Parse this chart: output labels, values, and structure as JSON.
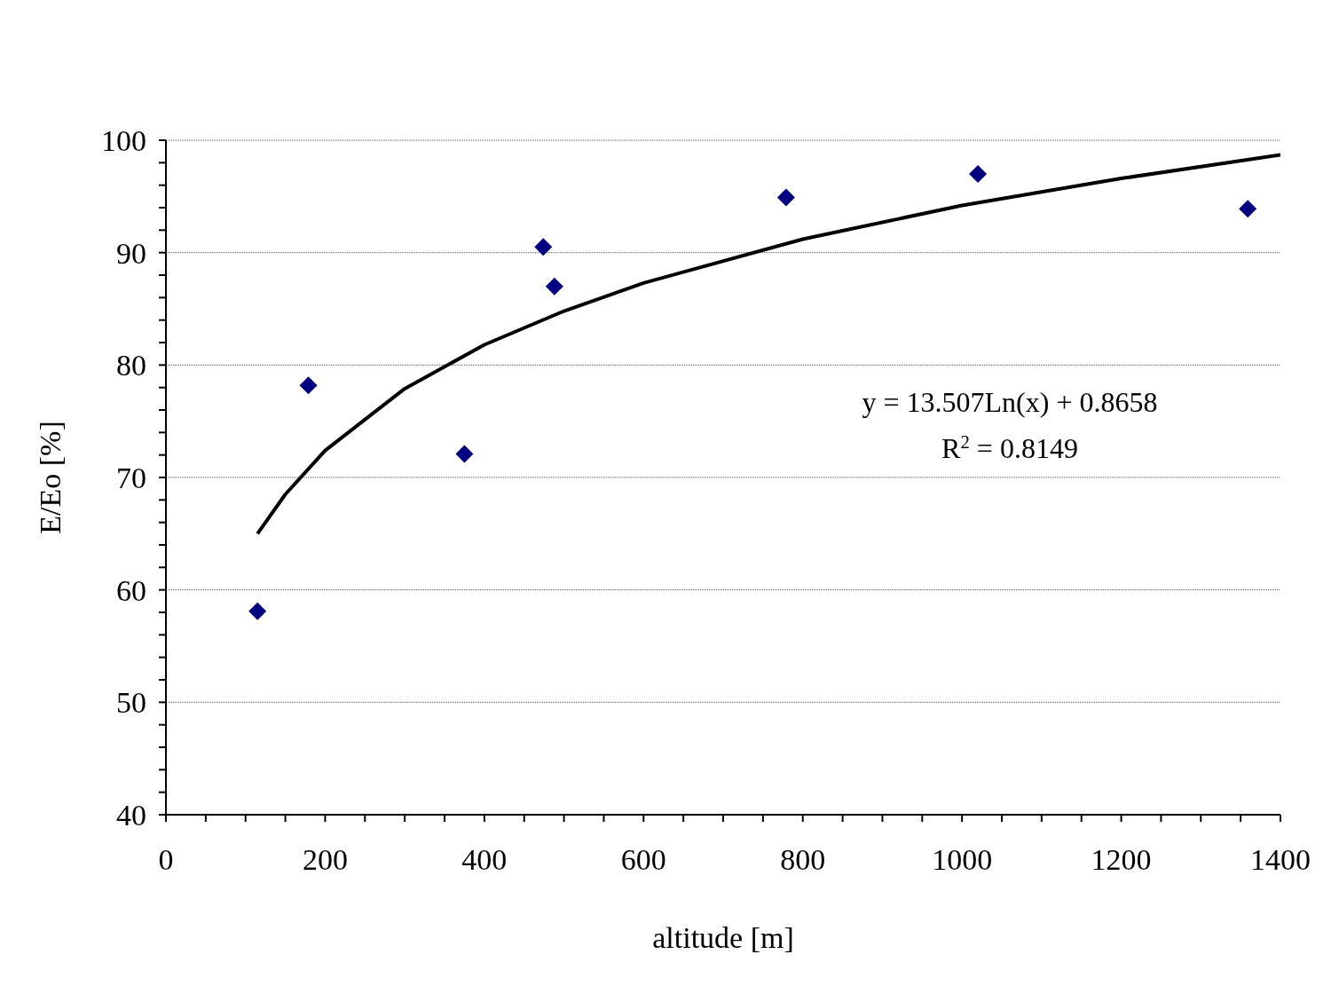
{
  "chart_data": {
    "type": "scatter",
    "xlabel": "altitude [m]",
    "ylabel": "E/Eo [%]",
    "annotations": [
      "y = 13.507Ln(x) + 0.8658",
      "R$^{2}$ = 0.8149"
    ],
    "xlim": [
      0,
      1400
    ],
    "ylim": [
      40,
      100
    ],
    "xticks": [
      0,
      {
        "value": 50,
        "label": null
      },
      {
        "value": 100,
        "label": null
      },
      {
        "value": 150,
        "label": null
      },
      200,
      {
        "value": 250,
        "label": null
      },
      {
        "value": 300,
        "label": null
      },
      {
        "value": 350,
        "label": null
      },
      400,
      {
        "value": 450,
        "label": null
      },
      {
        "value": 500,
        "label": null
      },
      {
        "value": 550,
        "label": null
      },
      600,
      {
        "value": 650,
        "label": null
      },
      {
        "value": 700,
        "label": null
      },
      {
        "value": 750,
        "label": null
      },
      800,
      {
        "value": 850,
        "label": null
      },
      {
        "value": 900,
        "label": null
      },
      {
        "value": 950,
        "label": null
      },
      1000,
      {
        "value": 1050,
        "label": null
      },
      {
        "value": 1100,
        "label": null
      },
      {
        "value": 1150,
        "label": null
      },
      1200,
      {
        "value": 1250,
        "label": null
      },
      {
        "value": 1300,
        "label": null
      },
      {
        "value": 1350,
        "label": null
      },
      1400
    ],
    "yticks": [
      40,
      {
        "value": 42,
        "label": null
      },
      {
        "value": 44,
        "label": null
      },
      {
        "value": 46,
        "label": null
      },
      {
        "value": 48,
        "label": null
      },
      50,
      {
        "value": 52,
        "label": null
      },
      {
        "value": 54,
        "label": null
      },
      {
        "value": 56,
        "label": null
      },
      {
        "value": 58,
        "label": null
      },
      60,
      {
        "value": 62,
        "label": null
      },
      {
        "value": 64,
        "label": null
      },
      {
        "value": 66,
        "label": null
      },
      {
        "value": 68,
        "label": null
      },
      70,
      {
        "value": 72,
        "label": null
      },
      {
        "value": 74,
        "label": null
      },
      {
        "value": 76,
        "label": null
      },
      {
        "value": 78,
        "label": null
      },
      80,
      {
        "value": 82,
        "label": null
      },
      {
        "value": 84,
        "label": null
      },
      {
        "value": 86,
        "label": null
      },
      {
        "value": 88,
        "label": null
      },
      90,
      {
        "value": 92,
        "label": null
      },
      {
        "value": 94,
        "label": null
      },
      {
        "value": 96,
        "label": null
      },
      {
        "value": 98,
        "label": null
      },
      100
    ],
    "grid": "y",
    "legend": false,
    "marker": "diamond",
    "series": [
      {
        "color": "#000080",
        "x": [
          115,
          179,
          375,
          474,
          488,
          779,
          1020,
          1359
        ],
        "values": [
          58.1,
          78.2,
          72.1,
          90.5,
          87,
          94.9,
          97,
          93.9
        ]
      },
      {
        "type": "line",
        "color": "#000000",
        "marker": "none",
        "line_style": "solid",
        "x": [
          115,
          150,
          200,
          300,
          400,
          500,
          600,
          800,
          1000,
          1200,
          1400
        ],
        "values": [
          65,
          68.5,
          72.4,
          77.9,
          81.8,
          84.8,
          87.3,
          91.2,
          94.2,
          96.6,
          98.7
        ]
      }
    ]
  }
}
